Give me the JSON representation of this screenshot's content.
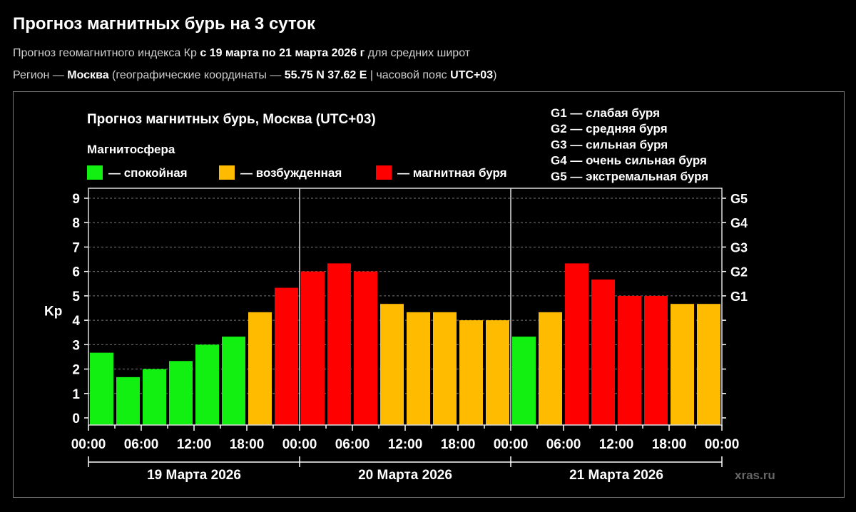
{
  "header": {
    "title": "Прогноз магнитных бурь на 3 суток",
    "line1": {
      "a": "Прогноз геомагнитного индекса Кр ",
      "b": "с 19 марта по 21 марта 2026 г",
      "c": " для средних широт"
    },
    "line2": {
      "a": "Регион — ",
      "b": "Москва",
      "c": " (географические координаты — ",
      "d": "55.75 N 37.62 E",
      "e": " | часовой пояс ",
      "f": "UTC+03",
      "g": ")"
    }
  },
  "chart_data": {
    "type": "bar",
    "title": "Прогноз магнитных бурь, Москва (UTC+03)",
    "ylabel": "Kp",
    "ylim": [
      0,
      9
    ],
    "yticks": [
      "0",
      "1",
      "2",
      "3",
      "4",
      "5",
      "6",
      "7",
      "8",
      "9"
    ],
    "grid": true,
    "right_axis_ticks": [
      {
        "kp": 5,
        "label": "G1"
      },
      {
        "kp": 6,
        "label": "G2"
      },
      {
        "kp": 7,
        "label": "G3"
      },
      {
        "kp": 8,
        "label": "G4"
      },
      {
        "kp": 9,
        "label": "G5"
      }
    ],
    "xtick_labels": [
      "00:00",
      "06:00",
      "12:00",
      "18:00",
      "00:00",
      "06:00",
      "12:00",
      "18:00",
      "00:00",
      "06:00",
      "12:00",
      "18:00",
      "00:00"
    ],
    "days": [
      "19 Марта 2026",
      "20 Марта 2026",
      "21 Марта 2026"
    ],
    "interval_hours": 3,
    "values": [
      2.67,
      1.67,
      2.0,
      2.33,
      3.0,
      3.33,
      4.33,
      5.33,
      6.0,
      6.33,
      6.0,
      4.67,
      4.33,
      4.33,
      4.0,
      4.0,
      3.33,
      4.33,
      6.33,
      5.67,
      5.0,
      5.0,
      4.67,
      4.67
    ],
    "legend_title": "Магнитосфера",
    "legend": [
      {
        "label": "— спокойная",
        "color": "#12f012"
      },
      {
        "label": "— возбужденная",
        "color": "#ffbb00"
      },
      {
        "label": "— магнитная буря",
        "color": "#ff0000"
      }
    ],
    "g_scale": [
      "G1 — слабая буря",
      "G2 — средняя буря",
      "G3 — сильная буря",
      "G4 — очень сильная буря",
      "G5 — экстремальная буря"
    ],
    "watermark": "xras.ru"
  }
}
